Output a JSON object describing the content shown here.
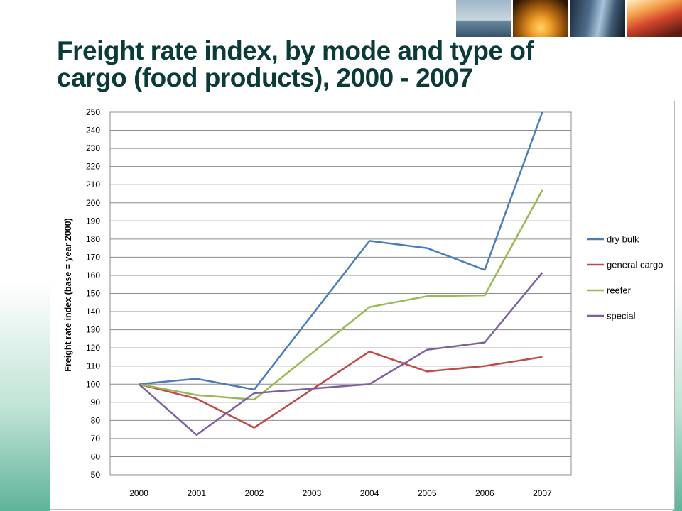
{
  "slide": {
    "title": "Freight rate index, by mode and type of cargo (food products), 2000 - 2007"
  },
  "banner": {
    "icons": [
      "ship-photo",
      "airplane-photo",
      "train-photo",
      "truck-photo"
    ]
  },
  "chart_data": {
    "type": "line",
    "title": "",
    "xlabel": "",
    "ylabel": "Freight rate index (base = year 2000)",
    "categories": [
      "2000",
      "2001",
      "2002",
      "2003",
      "2004",
      "2005",
      "2006",
      "2007"
    ],
    "ylim": [
      50,
      250
    ],
    "yticks": [
      50,
      60,
      70,
      80,
      90,
      100,
      110,
      120,
      130,
      140,
      150,
      160,
      170,
      180,
      190,
      200,
      210,
      220,
      230,
      240,
      250
    ],
    "grid": true,
    "legend_position": "right",
    "series": [
      {
        "name": "dry bulk",
        "color": "#4a7ebb",
        "values": [
          100,
          103,
          97,
          138,
          179,
          175,
          163,
          250
        ]
      },
      {
        "name": "general cargo",
        "color": "#be4b48",
        "values": [
          100,
          92,
          76,
          97,
          118,
          107,
          110,
          115
        ]
      },
      {
        "name": "reefer",
        "color": "#98b954",
        "values": [
          100,
          94,
          91.5,
          117,
          142.5,
          148.5,
          149,
          207
        ]
      },
      {
        "name": "special",
        "color": "#7d60a0",
        "values": [
          100,
          72,
          95,
          97.5,
          100,
          119,
          123,
          161.5
        ]
      }
    ]
  }
}
